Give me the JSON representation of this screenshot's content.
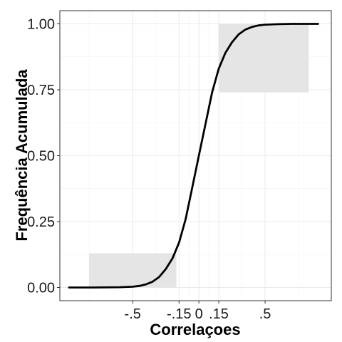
{
  "chart_data": {
    "type": "line",
    "xlabel": "Correlaçoes",
    "ylabel": "Frequência Acumulada",
    "xlim": [
      -1.05,
      1.0
    ],
    "ylim": [
      -0.05,
      1.05
    ],
    "x_ticks": [
      {
        "value": -0.5,
        "label": "-.5"
      },
      {
        "value": -0.15,
        "label": "-.15"
      },
      {
        "value": 0,
        "label": "0"
      },
      {
        "value": 0.15,
        "label": ".15"
      },
      {
        "value": 0.5,
        "label": ".5"
      }
    ],
    "y_ticks": [
      {
        "value": 0.0,
        "label": "0.00"
      },
      {
        "value": 0.25,
        "label": "0.25"
      },
      {
        "value": 0.5,
        "label": "0.50"
      },
      {
        "value": 0.75,
        "label": "0.75"
      },
      {
        "value": 1.0,
        "label": "1.00"
      }
    ],
    "x_minor_gridlines": [
      -0.825,
      -0.325,
      -0.075,
      0.075,
      0.325,
      0.75
    ],
    "y_minor_gridlines": [
      0.125,
      0.375,
      0.625,
      0.875
    ],
    "shaded_regions": [
      {
        "x": [
          -0.83,
          -0.17
        ],
        "y": [
          0.0,
          0.13
        ]
      },
      {
        "x": [
          0.15,
          0.83
        ],
        "y": [
          0.74,
          1.0
        ]
      }
    ],
    "grid": true,
    "series": [
      {
        "x": [
          -0.98,
          -0.8,
          -0.6,
          -0.5,
          -0.45,
          -0.4,
          -0.35,
          -0.3,
          -0.25,
          -0.2,
          -0.15,
          -0.1,
          -0.05,
          0.0,
          0.05,
          0.1,
          0.15,
          0.2,
          0.25,
          0.3,
          0.35,
          0.4,
          0.45,
          0.5,
          0.6,
          0.7,
          0.8,
          0.9
        ],
        "y": [
          0.0,
          0.0,
          0.001,
          0.003,
          0.006,
          0.012,
          0.022,
          0.04,
          0.07,
          0.11,
          0.17,
          0.26,
          0.38,
          0.5,
          0.62,
          0.74,
          0.83,
          0.89,
          0.93,
          0.96,
          0.978,
          0.988,
          0.994,
          0.997,
          0.999,
          1.0,
          1.0,
          1.0
        ]
      }
    ]
  }
}
